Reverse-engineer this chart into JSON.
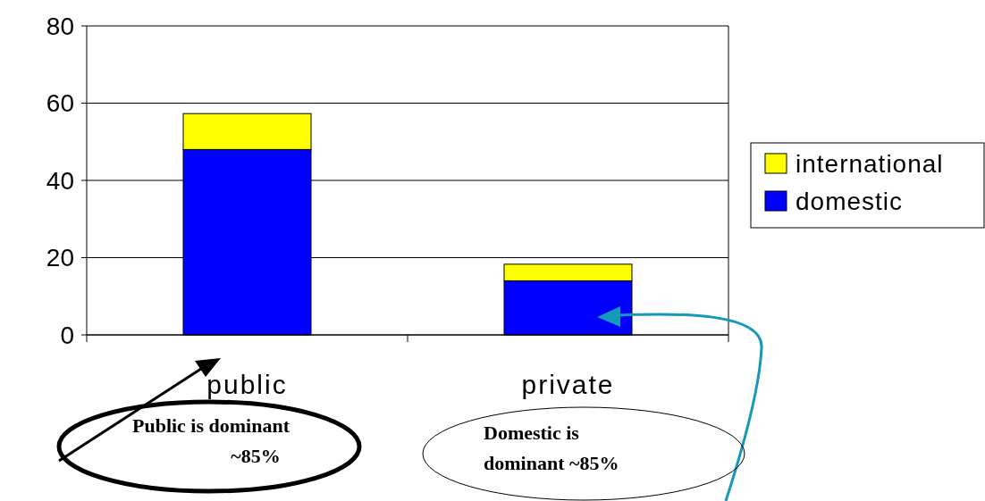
{
  "chart_data": {
    "type": "bar",
    "stacked": true,
    "categories": [
      "public",
      "private"
    ],
    "series": [
      {
        "name": "domestic",
        "color": "#0000ff",
        "values": [
          48,
          14
        ]
      },
      {
        "name": "international",
        "color": "#ffff00",
        "values": [
          9.3,
          4.3
        ]
      }
    ],
    "ylim": [
      0,
      80
    ],
    "yticks": [
      0,
      20,
      40,
      60,
      80
    ],
    "grid": "y",
    "legend": "right",
    "annotations": [
      "Public is dominant ~85%",
      "Domestic is dominant ~85%"
    ]
  }
}
